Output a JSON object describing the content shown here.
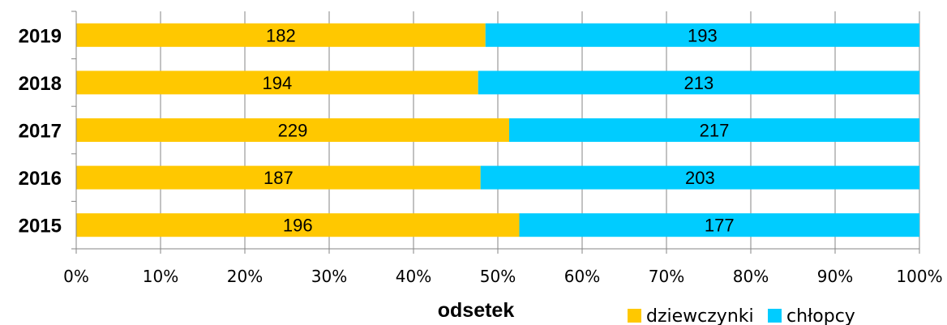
{
  "chart_data": {
    "type": "bar",
    "orientation": "horizontal",
    "stacked": "percent",
    "categories": [
      "2019",
      "2018",
      "2017",
      "2016",
      "2015"
    ],
    "series": [
      {
        "name": "dziewczynki",
        "values": [
          182,
          194,
          229,
          187,
          196
        ],
        "color": "#FFC800"
      },
      {
        "name": "chłopcy",
        "values": [
          193,
          213,
          217,
          203,
          177
        ],
        "color": "#00CCFF"
      }
    ],
    "xlabel": "odsetek",
    "xlim": [
      0,
      100
    ],
    "xticks": [
      "0%",
      "10%",
      "20%",
      "30%",
      "40%",
      "50%",
      "60%",
      "70%",
      "80%",
      "90%",
      "100%"
    ],
    "grid": "vertical",
    "legend_position": "bottom-right"
  }
}
